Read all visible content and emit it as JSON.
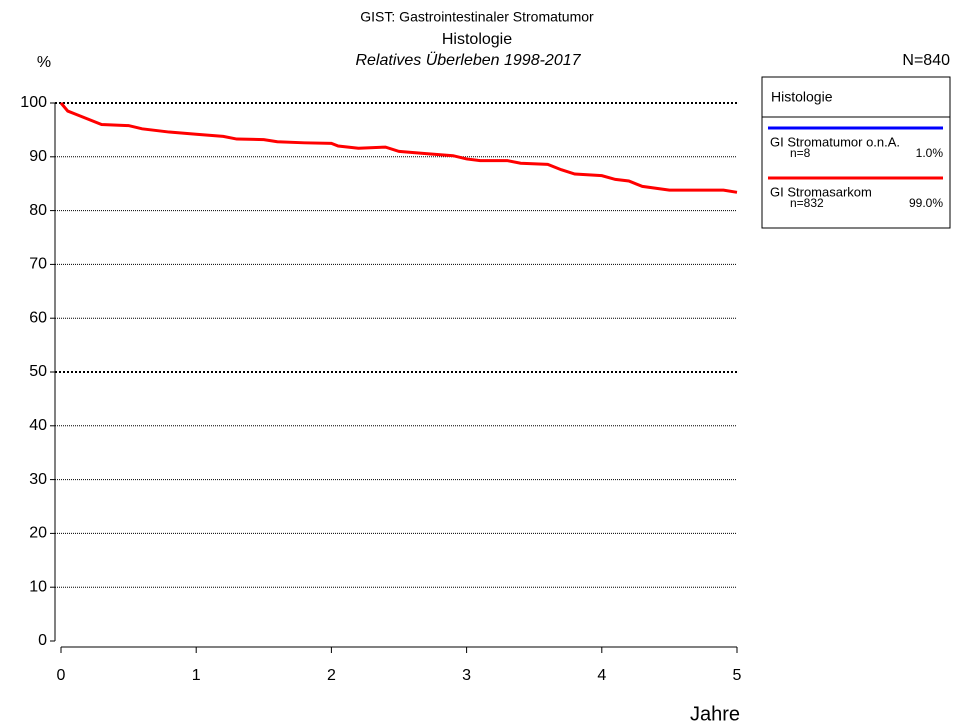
{
  "chart_data": {
    "type": "line",
    "title": "GIST: Gastrointestinaler Stromatumor",
    "subtitle": "Histologie",
    "caption": "Relatives Überleben 1998-2017",
    "y_label": "%",
    "x_label": "Jahre",
    "total_label": "N=840",
    "legend_title": "Histologie",
    "xlim": [
      0,
      5
    ],
    "xticks": [
      0,
      1,
      2,
      3,
      4,
      5
    ],
    "ylim": [
      0,
      100
    ],
    "yticks": [
      0,
      10,
      20,
      30,
      40,
      50,
      60,
      70,
      80,
      90,
      100
    ],
    "grid": true,
    "series": [
      {
        "name": "GI Stromatumor o.n.A.",
        "color": "#0000ff",
        "n_label": "n=8",
        "share_label": "1.0%",
        "x": [],
        "values": []
      },
      {
        "name": "GI Stromasarkom",
        "color": "#ff0000",
        "n_label": "n=832",
        "share_label": "99.0%",
        "x": [
          0,
          0.05,
          0.1,
          0.2,
          0.3,
          0.5,
          0.6,
          0.8,
          1.0,
          1.2,
          1.3,
          1.5,
          1.6,
          1.8,
          2.0,
          2.05,
          2.2,
          2.4,
          2.5,
          2.7,
          2.9,
          3.0,
          3.1,
          3.3,
          3.4,
          3.6,
          3.7,
          3.8,
          4.0,
          4.1,
          4.2,
          4.3,
          4.5,
          4.9,
          5.0
        ],
        "values": [
          100,
          98.5,
          98,
          97,
          96,
          95.8,
          95.2,
          94.6,
          94.2,
          93.8,
          93.3,
          93.2,
          92.8,
          92.6,
          92.5,
          92,
          91.6,
          91.8,
          91,
          90.6,
          90.2,
          89.6,
          89.3,
          89.3,
          88.8,
          88.6,
          87.6,
          86.8,
          86.5,
          85.8,
          85.5,
          84.5,
          83.8,
          83.8,
          83.4
        ]
      }
    ]
  }
}
